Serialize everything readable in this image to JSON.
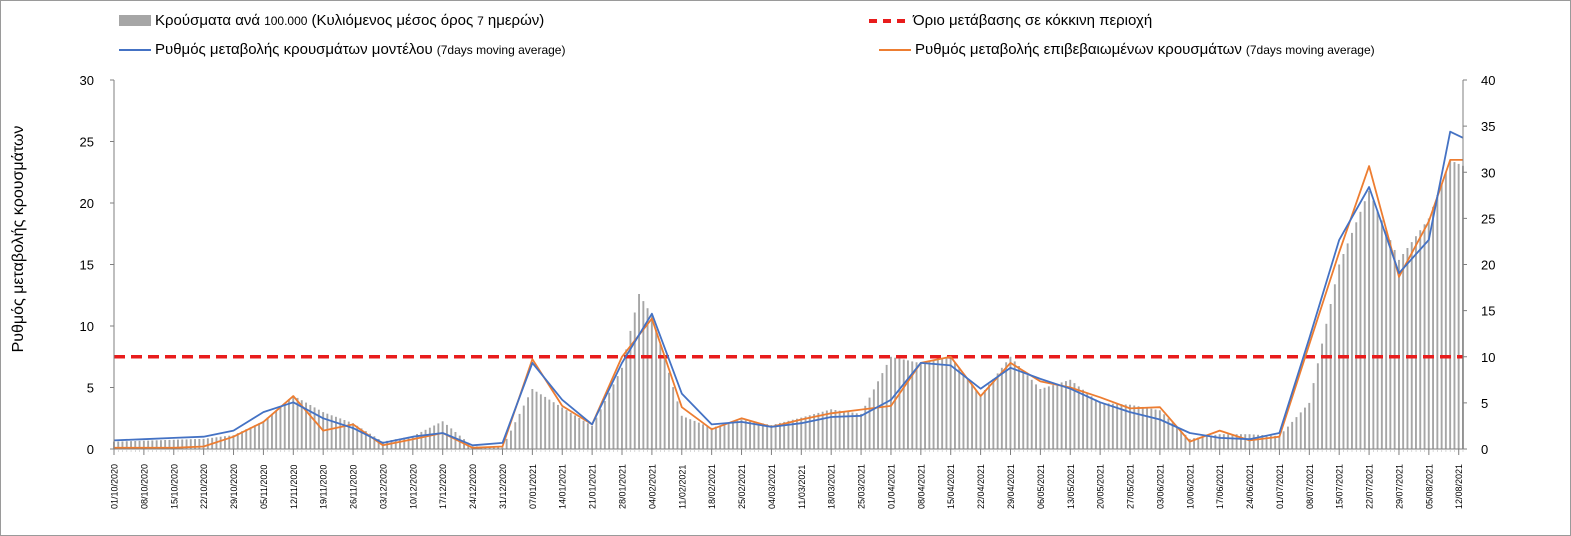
{
  "legend": {
    "bars_main_a": "Κρούσματα ανά",
    "bars_note_a": "100.000",
    "bars_main_b": "(Κυλιόμενος μέσος όρος",
    "bars_note_b": "7",
    "bars_main_c": "ημερών)",
    "threshold": "Όριο μετάβασης σε κόκκινη περιοχή",
    "model_main": "Ρυθμός μεταβολής κρουσμάτων μοντέλου",
    "model_note": "(7days moving average)",
    "confirmed_main": "Ρυθμός μεταβολής επιβεβαιωμένων κρουσμάτων",
    "confirmed_note": "(7days moving average)"
  },
  "chart_data": {
    "type": "bar",
    "ylabel": "Ρυθμός μεταβολής κρουσμάτων",
    "ylim": [
      0,
      30
    ],
    "y_ticks": [
      "0",
      "5",
      "10",
      "15",
      "20",
      "25",
      "30"
    ],
    "y2lim": [
      0,
      40
    ],
    "y2_ticks": [
      "0",
      "5",
      "10",
      "15",
      "20",
      "25",
      "30",
      "35",
      "40"
    ],
    "grid": false,
    "legend_position": "top",
    "x_start": "2020-10-01",
    "x_end": "2021-08-13",
    "x_tick_labels": [
      "01/10/2020",
      "08/10/2020",
      "15/10/2020",
      "22/10/2020",
      "29/10/2020",
      "05/11/2020",
      "12/11/2020",
      "19/11/2020",
      "26/11/2020",
      "03/12/2020",
      "10/12/2020",
      "17/12/2020",
      "24/12/2020",
      "31/12/2020",
      "07/01/2021",
      "14/01/2021",
      "21/01/2021",
      "28/01/2021",
      "04/02/2021",
      "11/02/2021",
      "18/02/2021",
      "25/02/2021",
      "04/03/2021",
      "11/03/2021",
      "18/03/2021",
      "25/03/2021",
      "01/04/2021",
      "08/04/2021",
      "15/04/2021",
      "22/04/2021",
      "29/04/2021",
      "06/05/2021",
      "13/05/2021",
      "20/05/2021",
      "27/05/2021",
      "03/06/2021",
      "10/06/2021",
      "17/06/2021",
      "24/06/2021",
      "01/07/2021",
      "08/07/2021",
      "15/07/2021",
      "22/07/2021",
      "29/07/2021",
      "05/08/2021",
      "12/08/2021"
    ],
    "threshold_right_axis": 10,
    "colors": {
      "bars": "#a6a6a6",
      "model": "#4472c4",
      "confirmed": "#ed7d31",
      "threshold": "#e81c1c"
    },
    "series": [
      {
        "name": "Κρούσματα ανά 100.000 (Κυλιόμενος μέσος όρος 7 ημερών)",
        "axis": "right",
        "x": [
          "2020-10-01",
          "2020-10-08",
          "2020-10-15",
          "2020-10-22",
          "2020-10-29",
          "2020-11-05",
          "2020-11-12",
          "2020-11-19",
          "2020-11-26",
          "2020-12-03",
          "2020-12-10",
          "2020-12-17",
          "2020-12-24",
          "2020-12-31",
          "2021-01-07",
          "2021-01-14",
          "2021-01-21",
          "2021-01-28",
          "2021-02-01",
          "2021-02-04",
          "2021-02-11",
          "2021-02-18",
          "2021-02-25",
          "2021-03-04",
          "2021-03-11",
          "2021-03-18",
          "2021-03-25",
          "2021-04-01",
          "2021-04-08",
          "2021-04-15",
          "2021-04-22",
          "2021-04-29",
          "2021-05-06",
          "2021-05-13",
          "2021-05-20",
          "2021-05-27",
          "2021-06-03",
          "2021-06-10",
          "2021-06-17",
          "2021-06-24",
          "2021-07-01",
          "2021-07-08",
          "2021-07-15",
          "2021-07-22",
          "2021-07-29",
          "2021-08-05",
          "2021-08-10",
          "2021-08-13"
        ],
        "values": [
          0.8,
          0.9,
          1.0,
          1.1,
          1.5,
          3.0,
          5.8,
          4.0,
          2.8,
          0.8,
          1.4,
          3.0,
          0.3,
          0.2,
          6.5,
          4.5,
          2.5,
          8.8,
          16.8,
          14.5,
          3.6,
          2.3,
          3.2,
          2.6,
          3.4,
          4.3,
          3.8,
          10.0,
          9.3,
          10.0,
          5.8,
          10.0,
          6.5,
          7.5,
          5.0,
          4.8,
          4.2,
          1.1,
          1.6,
          1.6,
          1.4,
          5.0,
          20.0,
          28.0,
          20.5,
          25.0,
          31.3,
          30.7
        ]
      },
      {
        "name": "Ρυθμός μεταβολής κρουσμάτων μοντέλου (7days moving average)",
        "axis": "left",
        "x": [
          "2020-10-01",
          "2020-10-08",
          "2020-10-15",
          "2020-10-22",
          "2020-10-29",
          "2020-11-05",
          "2020-11-12",
          "2020-11-19",
          "2020-11-26",
          "2020-12-03",
          "2020-12-10",
          "2020-12-17",
          "2020-12-24",
          "2020-12-31",
          "2021-01-07",
          "2021-01-14",
          "2021-01-21",
          "2021-01-28",
          "2021-02-04",
          "2021-02-11",
          "2021-02-18",
          "2021-02-25",
          "2021-03-04",
          "2021-03-11",
          "2021-03-18",
          "2021-03-25",
          "2021-04-01",
          "2021-04-08",
          "2021-04-15",
          "2021-04-22",
          "2021-04-29",
          "2021-05-06",
          "2021-05-13",
          "2021-05-20",
          "2021-05-27",
          "2021-06-03",
          "2021-06-10",
          "2021-06-17",
          "2021-06-24",
          "2021-07-01",
          "2021-07-08",
          "2021-07-15",
          "2021-07-22",
          "2021-07-29",
          "2021-08-05",
          "2021-08-10",
          "2021-08-13"
        ],
        "values": [
          0.7,
          0.8,
          0.9,
          1.0,
          1.5,
          3.0,
          3.8,
          2.5,
          1.7,
          0.5,
          1.0,
          1.3,
          0.3,
          0.5,
          7.0,
          4.0,
          2.0,
          7.0,
          11.0,
          4.5,
          2.0,
          2.2,
          1.8,
          2.1,
          2.6,
          2.7,
          4.0,
          7.0,
          6.8,
          4.9,
          6.6,
          5.7,
          4.9,
          3.8,
          3.0,
          2.4,
          1.3,
          0.9,
          0.8,
          1.3,
          9.0,
          17.0,
          21.3,
          14.3,
          17.0,
          25.8,
          25.3
        ]
      },
      {
        "name": "Ρυθμός μεταβολής επιβεβαιωμένων κρουσμάτων (7days moving average)",
        "axis": "left",
        "x": [
          "2020-10-01",
          "2020-10-08",
          "2020-10-15",
          "2020-10-22",
          "2020-10-29",
          "2020-11-05",
          "2020-11-12",
          "2020-11-19",
          "2020-11-26",
          "2020-12-03",
          "2020-12-10",
          "2020-12-17",
          "2020-12-24",
          "2020-12-31",
          "2021-01-07",
          "2021-01-14",
          "2021-01-21",
          "2021-01-28",
          "2021-02-04",
          "2021-02-11",
          "2021-02-18",
          "2021-02-25",
          "2021-03-04",
          "2021-03-11",
          "2021-03-18",
          "2021-03-25",
          "2021-04-01",
          "2021-04-08",
          "2021-04-15",
          "2021-04-22",
          "2021-04-29",
          "2021-05-06",
          "2021-05-13",
          "2021-05-20",
          "2021-05-27",
          "2021-06-03",
          "2021-06-10",
          "2021-06-17",
          "2021-06-24",
          "2021-07-01",
          "2021-07-08",
          "2021-07-15",
          "2021-07-22",
          "2021-07-29",
          "2021-08-05",
          "2021-08-10",
          "2021-08-13"
        ],
        "values": [
          0.1,
          0.1,
          0.1,
          0.2,
          1.0,
          2.2,
          4.3,
          1.5,
          2.0,
          0.3,
          0.8,
          1.3,
          0.1,
          0.2,
          7.3,
          3.5,
          2.0,
          7.5,
          10.6,
          3.4,
          1.6,
          2.5,
          1.8,
          2.4,
          2.9,
          3.2,
          3.5,
          7.0,
          7.5,
          4.3,
          7.0,
          5.5,
          5.0,
          4.2,
          3.3,
          3.4,
          0.6,
          1.5,
          0.7,
          1.0,
          8.5,
          16.0,
          23.0,
          14.0,
          18.5,
          23.5,
          23.5
        ]
      }
    ]
  }
}
